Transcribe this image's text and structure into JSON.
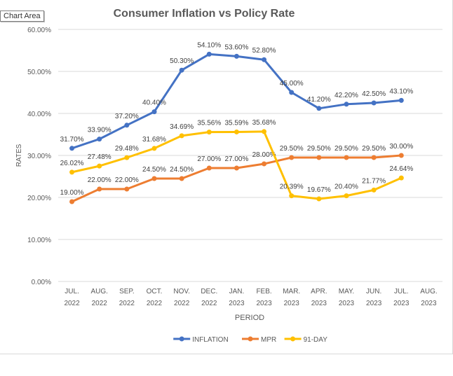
{
  "tooltip": {
    "label": "Chart Area"
  },
  "colors": {
    "INFLATION": "#4472c4",
    "MPR": "#ed7d31",
    "91-DAY": "#ffc000",
    "grid": "#d9d9d9",
    "text": "#595959"
  },
  "chart_data": {
    "type": "line",
    "title": "Consumer Inflation vs Policy Rate",
    "xlabel": "PERIOD",
    "ylabel": "RATES",
    "ylim": [
      0,
      60
    ],
    "y_ticks": [
      "0.00%",
      "10.00%",
      "20.00%",
      "30.00%",
      "40.00%",
      "50.00%",
      "60.00%"
    ],
    "grid": "horizontal",
    "legend_position": "bottom",
    "categories": [
      [
        "JUL.",
        "2022"
      ],
      [
        "AUG.",
        "2022"
      ],
      [
        "SEP.",
        "2022"
      ],
      [
        "OCT.",
        "2022"
      ],
      [
        "NOV.",
        "2022"
      ],
      [
        "DEC.",
        "2022"
      ],
      [
        "JAN.",
        "2023"
      ],
      [
        "FEB.",
        "2023"
      ],
      [
        "MAR.",
        "2023"
      ],
      [
        "APR.",
        "2023"
      ],
      [
        "MAY.",
        "2023"
      ],
      [
        "JUN.",
        "2023"
      ],
      [
        "JUL.",
        "2023"
      ],
      [
        "AUG.",
        "2023"
      ]
    ],
    "series": [
      {
        "name": "INFLATION",
        "values": [
          31.7,
          33.9,
          37.2,
          40.4,
          50.3,
          54.1,
          53.6,
          52.8,
          45.0,
          41.2,
          42.2,
          42.5,
          43.1,
          null
        ],
        "labels": [
          "31.70%",
          "33.90%",
          "37.20%",
          "40.40%",
          "50.30%",
          "54.10%",
          "53.60%",
          "52.80%",
          "45.00%",
          "41.20%",
          "42.20%",
          "42.50%",
          "43.10%",
          null
        ]
      },
      {
        "name": "MPR",
        "values": [
          19.0,
          22.0,
          22.0,
          24.5,
          24.5,
          27.0,
          27.0,
          28.0,
          29.5,
          29.5,
          29.5,
          29.5,
          30.0,
          null
        ],
        "labels": [
          "19.00%",
          "22.00%",
          "22.00%",
          "24.50%",
          "24.50%",
          "27.00%",
          "27.00%",
          "28.00%",
          "29.50%",
          "29.50%",
          "29.50%",
          "29.50%",
          "30.00%",
          null
        ]
      },
      {
        "name": "91-DAY",
        "values": [
          26.02,
          27.48,
          29.48,
          31.68,
          34.69,
          35.56,
          35.59,
          35.68,
          20.39,
          19.67,
          20.4,
          21.77,
          24.64,
          null
        ],
        "labels": [
          "26.02%",
          "27.48%",
          "29.48%",
          "31.68%",
          "34.69%",
          "35.56%",
          "35.59%",
          "35.68%",
          "20.39%",
          "19.67%",
          "20.40%",
          "21.77%",
          "24.64%",
          null
        ]
      }
    ]
  }
}
